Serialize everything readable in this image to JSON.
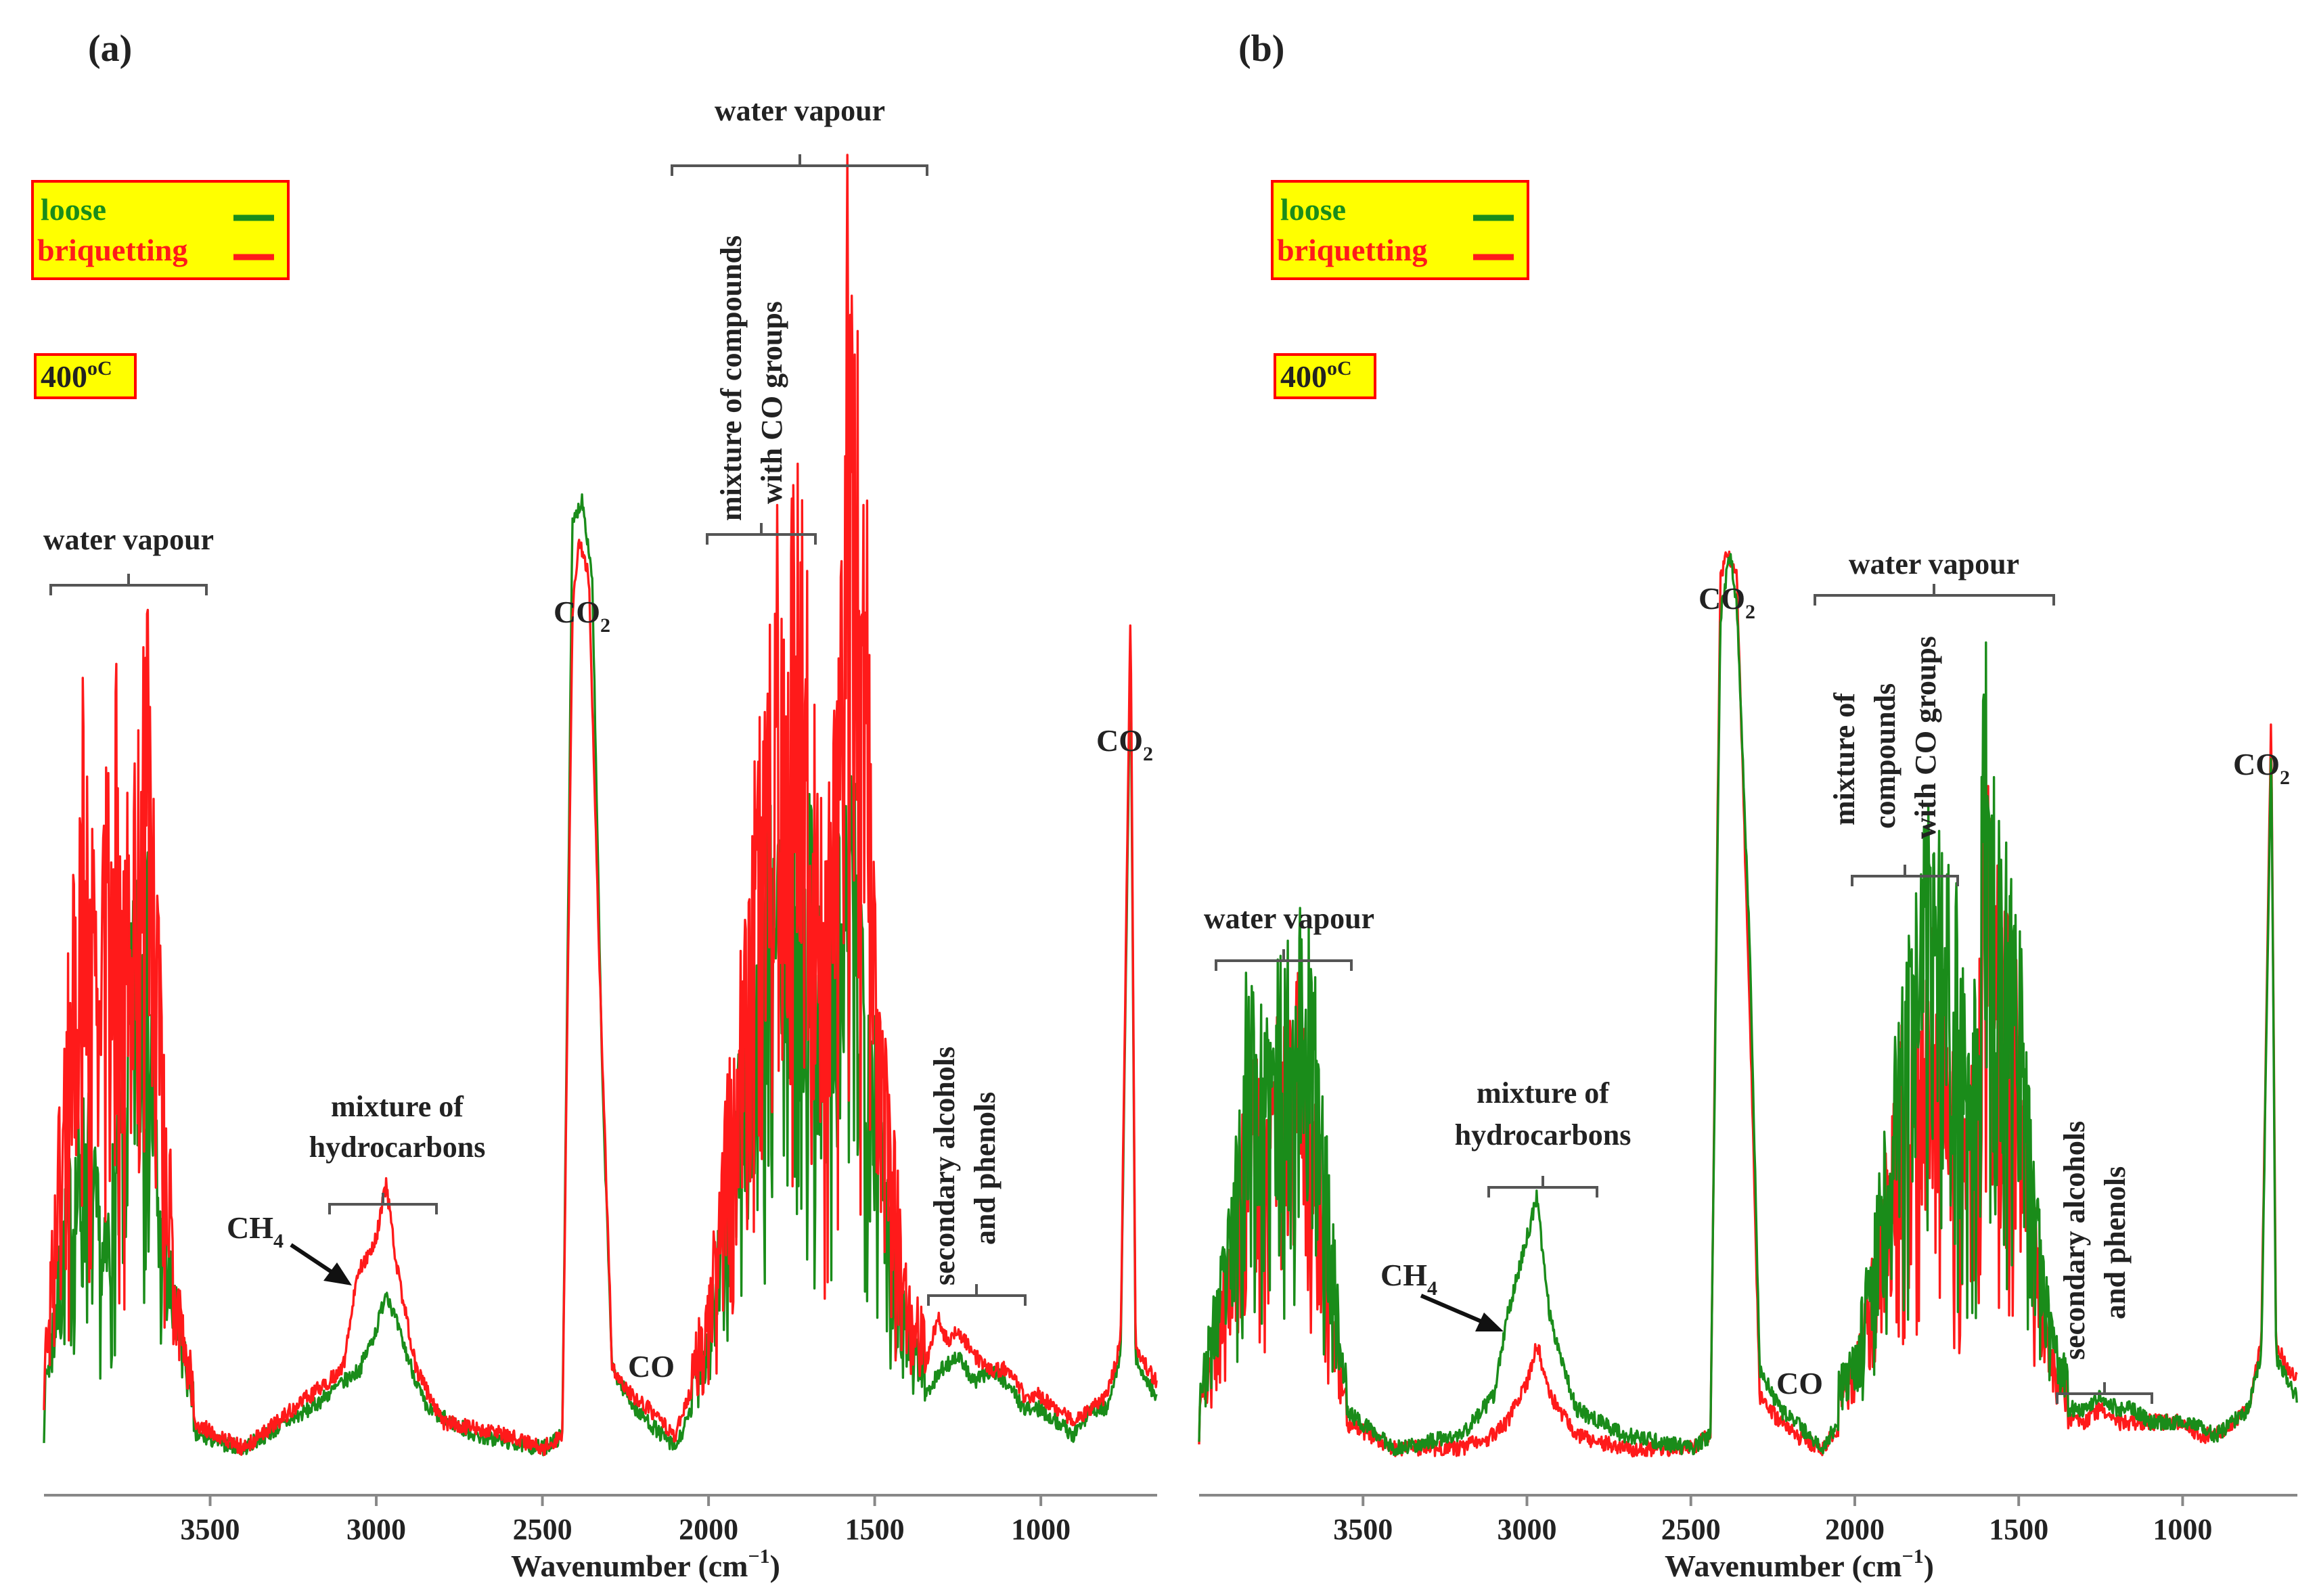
{
  "figure": {
    "panels": [
      {
        "panel_label": "(a)",
        "legend": {
          "loose": "loose",
          "briquetting": "briquetting"
        },
        "temperature": "400",
        "temperature_unit": "oC",
        "xlabel": "Wavenumber (cm",
        "xlabel_sup": "−1",
        "xlabel_close": ")",
        "ticks": [
          "3500",
          "3000",
          "2500",
          "2000",
          "1500",
          "1000"
        ],
        "annotations": {
          "water_left": "water vapour",
          "water_top": "water vapour",
          "co_groups_1": "mixture of compounds",
          "co_groups_2": "with CO groups",
          "hc_1": "mixture of",
          "hc_2": "hydrocarbons",
          "ch4": "CH",
          "ch4_sub": "4",
          "co2_left": "CO",
          "co2_left_sub": "2",
          "co": "CO",
          "alc_1": "secondary alcohols",
          "alc_2": "and phenols",
          "co2_right": "CO",
          "co2_right_sub": "2"
        }
      },
      {
        "panel_label": "(b)",
        "legend": {
          "loose": "loose",
          "briquetting": "briquetting"
        },
        "temperature": "400",
        "temperature_unit": "oC",
        "xlabel": "Wavenumber (cm",
        "xlabel_sup": "−1",
        "xlabel_close": ")",
        "ticks": [
          "3500",
          "3000",
          "2500",
          "2000",
          "1500",
          "1000"
        ],
        "annotations": {
          "water_left": "water vapour",
          "water_top": "water vapour",
          "co_groups_1": "mixture of",
          "co_groups_2": "compounds",
          "co_groups_3": "with CO groups",
          "hc_1": "mixture of",
          "hc_2": "hydrocarbons",
          "ch4": "CH",
          "ch4_sub": "4",
          "co2_left": "CO",
          "co2_left_sub": "2",
          "co": "CO",
          "alc_1": "secondary alcohols",
          "alc_2": "and phenols",
          "co2_right": "CO",
          "co2_right_sub": "2"
        }
      }
    ]
  },
  "colors": {
    "loose": "#1a8c1a",
    "briquetting": "#ff1a1a",
    "legend_bg": "#ffff00",
    "legend_border": "#ff0000"
  },
  "chart_data": [
    {
      "type": "line",
      "title": "(a)",
      "xlabel": "Wavenumber (cm−1)",
      "ylabel": "",
      "xlim": [
        4000,
        650
      ],
      "ylim": [
        0,
        1
      ],
      "xticks": [
        3500,
        3000,
        2500,
        2000,
        1500,
        1000
      ],
      "series": [
        {
          "name": "loose",
          "points": [
            [
              4000,
              0.03
            ],
            [
              3930,
              0.2
            ],
            [
              3870,
              0.27
            ],
            [
              3820,
              0.15
            ],
            [
              3760,
              0.3
            ],
            [
              3700,
              0.52
            ],
            [
              3650,
              0.18
            ],
            [
              3600,
              0.1
            ],
            [
              3550,
              0.03
            ],
            [
              3400,
              0.02
            ],
            [
              3200,
              0.05
            ],
            [
              3100,
              0.07
            ],
            [
              3050,
              0.08
            ],
            [
              3000,
              0.11
            ],
            [
              2970,
              0.14
            ],
            [
              2920,
              0.1
            ],
            [
              2850,
              0.05
            ],
            [
              2700,
              0.03
            ],
            [
              2500,
              0.02
            ],
            [
              2440,
              0.03
            ],
            [
              2410,
              0.72
            ],
            [
              2380,
              0.74
            ],
            [
              2350,
              0.68
            ],
            [
              2320,
              0.3
            ],
            [
              2290,
              0.08
            ],
            [
              2220,
              0.05
            ],
            [
              2180,
              0.04
            ],
            [
              2100,
              0.02
            ],
            [
              2000,
              0.08
            ],
            [
              1950,
              0.2
            ],
            [
              1900,
              0.32
            ],
            [
              1850,
              0.42
            ],
            [
              1800,
              0.5
            ],
            [
              1750,
              0.55
            ],
            [
              1700,
              0.52
            ],
            [
              1650,
              0.4
            ],
            [
              1600,
              0.48
            ],
            [
              1570,
              0.5
            ],
            [
              1530,
              0.45
            ],
            [
              1500,
              0.35
            ],
            [
              1450,
              0.18
            ],
            [
              1400,
              0.09
            ],
            [
              1350,
              0.06
            ],
            [
              1300,
              0.08
            ],
            [
              1250,
              0.09
            ],
            [
              1200,
              0.07
            ],
            [
              1150,
              0.08
            ],
            [
              1100,
              0.07
            ],
            [
              1050,
              0.05
            ],
            [
              1000,
              0.05
            ],
            [
              950,
              0.04
            ],
            [
              900,
              0.03
            ],
            [
              850,
              0.05
            ],
            [
              800,
              0.05
            ],
            [
              760,
              0.09
            ],
            [
              730,
              0.63
            ],
            [
              715,
              0.09
            ],
            [
              680,
              0.07
            ],
            [
              650,
              0.06
            ]
          ]
        },
        {
          "name": "briquetting",
          "points": [
            [
              4000,
              0.05
            ],
            [
              3930,
              0.35
            ],
            [
              3880,
              0.58
            ],
            [
              3840,
              0.4
            ],
            [
              3790,
              0.6
            ],
            [
              3740,
              0.45
            ],
            [
              3690,
              0.67
            ],
            [
              3640,
              0.3
            ],
            [
              3600,
              0.12
            ],
            [
              3550,
              0.04
            ],
            [
              3400,
              0.02
            ],
            [
              3200,
              0.06
            ],
            [
              3100,
              0.08
            ],
            [
              3060,
              0.15
            ],
            [
              3000,
              0.18
            ],
            [
              2970,
              0.22
            ],
            [
              2940,
              0.16
            ],
            [
              2880,
              0.08
            ],
            [
              2800,
              0.04
            ],
            [
              2600,
              0.03
            ],
            [
              2500,
              0.02
            ],
            [
              2440,
              0.03
            ],
            [
              2410,
              0.65
            ],
            [
              2390,
              0.71
            ],
            [
              2360,
              0.68
            ],
            [
              2330,
              0.4
            ],
            [
              2290,
              0.08
            ],
            [
              2230,
              0.06
            ],
            [
              2180,
              0.05
            ],
            [
              2100,
              0.03
            ],
            [
              2000,
              0.1
            ],
            [
              1950,
              0.25
            ],
            [
              1900,
              0.4
            ],
            [
              1850,
              0.55
            ],
            [
              1800,
              0.7
            ],
            [
              1760,
              0.72
            ],
            [
              1720,
              0.78
            ],
            [
              1700,
              0.73
            ],
            [
              1650,
              0.45
            ],
            [
              1600,
              0.65
            ],
            [
              1580,
              1.0
            ],
            [
              1560,
              0.85
            ],
            [
              1530,
              0.82
            ],
            [
              1500,
              0.4
            ],
            [
              1450,
              0.25
            ],
            [
              1400,
              0.12
            ],
            [
              1350,
              0.08
            ],
            [
              1310,
              0.12
            ],
            [
              1280,
              0.1
            ],
            [
              1250,
              0.11
            ],
            [
              1200,
              0.09
            ],
            [
              1150,
              0.08
            ],
            [
              1100,
              0.08
            ],
            [
              1050,
              0.06
            ],
            [
              1000,
              0.06
            ],
            [
              950,
              0.05
            ],
            [
              900,
              0.04
            ],
            [
              850,
              0.05
            ],
            [
              800,
              0.06
            ],
            [
              760,
              0.1
            ],
            [
              730,
              0.66
            ],
            [
              715,
              0.1
            ],
            [
              680,
              0.08
            ],
            [
              650,
              0.07
            ]
          ]
        }
      ]
    },
    {
      "type": "line",
      "title": "(b)",
      "xlabel": "Wavenumber (cm−1)",
      "ylabel": "",
      "xlim": [
        4000,
        650
      ],
      "ylim": [
        0,
        1
      ],
      "xticks": [
        3500,
        3000,
        2500,
        2000,
        1500,
        1000
      ],
      "series": [
        {
          "name": "loose",
          "points": [
            [
              4000,
              0.03
            ],
            [
              3900,
              0.18
            ],
            [
              3850,
              0.38
            ],
            [
              3800,
              0.3
            ],
            [
              3750,
              0.37
            ],
            [
              3700,
              0.4
            ],
            [
              3670,
              0.43
            ],
            [
              3630,
              0.28
            ],
            [
              3600,
              0.19
            ],
            [
              3560,
              0.05
            ],
            [
              3400,
              0.02
            ],
            [
              3200,
              0.03
            ],
            [
              3100,
              0.06
            ],
            [
              3060,
              0.12
            ],
            [
              3000,
              0.18
            ],
            [
              2970,
              0.21
            ],
            [
              2930,
              0.12
            ],
            [
              2850,
              0.05
            ],
            [
              2700,
              0.03
            ],
            [
              2500,
              0.02
            ],
            [
              2440,
              0.03
            ],
            [
              2410,
              0.65
            ],
            [
              2380,
              0.7
            ],
            [
              2360,
              0.66
            ],
            [
              2320,
              0.4
            ],
            [
              2290,
              0.08
            ],
            [
              2230,
              0.05
            ],
            [
              2180,
              0.04
            ],
            [
              2100,
              0.02
            ],
            [
              2000,
              0.06
            ],
            [
              1950,
              0.15
            ],
            [
              1900,
              0.25
            ],
            [
              1850,
              0.35
            ],
            [
              1800,
              0.45
            ],
            [
              1760,
              0.48
            ],
            [
              1720,
              0.42
            ],
            [
              1700,
              0.44
            ],
            [
              1650,
              0.3
            ],
            [
              1600,
              0.6
            ],
            [
              1580,
              0.52
            ],
            [
              1550,
              0.48
            ],
            [
              1500,
              0.4
            ],
            [
              1450,
              0.2
            ],
            [
              1400,
              0.08
            ],
            [
              1350,
              0.05
            ],
            [
              1300,
              0.05
            ],
            [
              1250,
              0.06
            ],
            [
              1200,
              0.05
            ],
            [
              1150,
              0.05
            ],
            [
              1100,
              0.04
            ],
            [
              1050,
              0.04
            ],
            [
              1000,
              0.04
            ],
            [
              950,
              0.04
            ],
            [
              900,
              0.03
            ],
            [
              850,
              0.04
            ],
            [
              800,
              0.05
            ],
            [
              760,
              0.09
            ],
            [
              730,
              0.56
            ],
            [
              715,
              0.09
            ],
            [
              680,
              0.07
            ],
            [
              650,
              0.06
            ]
          ]
        },
        {
          "name": "briquetting",
          "points": [
            [
              4000,
              0.02
            ],
            [
              3900,
              0.15
            ],
            [
              3850,
              0.32
            ],
            [
              3800,
              0.25
            ],
            [
              3750,
              0.33
            ],
            [
              3700,
              0.35
            ],
            [
              3670,
              0.3
            ],
            [
              3630,
              0.22
            ],
            [
              3600,
              0.12
            ],
            [
              3560,
              0.04
            ],
            [
              3400,
              0.02
            ],
            [
              3200,
              0.02
            ],
            [
              3100,
              0.03
            ],
            [
              3060,
              0.04
            ],
            [
              3000,
              0.07
            ],
            [
              2970,
              0.1
            ],
            [
              2930,
              0.06
            ],
            [
              2850,
              0.03
            ],
            [
              2700,
              0.02
            ],
            [
              2500,
              0.02
            ],
            [
              2440,
              0.03
            ],
            [
              2410,
              0.68
            ],
            [
              2390,
              0.7
            ],
            [
              2360,
              0.68
            ],
            [
              2320,
              0.35
            ],
            [
              2290,
              0.06
            ],
            [
              2230,
              0.04
            ],
            [
              2180,
              0.03
            ],
            [
              2100,
              0.02
            ],
            [
              2000,
              0.05
            ],
            [
              1950,
              0.12
            ],
            [
              1900,
              0.22
            ],
            [
              1850,
              0.32
            ],
            [
              1800,
              0.35
            ],
            [
              1760,
              0.38
            ],
            [
              1720,
              0.33
            ],
            [
              1700,
              0.3
            ],
            [
              1650,
              0.25
            ],
            [
              1600,
              0.5
            ],
            [
              1580,
              0.45
            ],
            [
              1550,
              0.4
            ],
            [
              1500,
              0.35
            ],
            [
              1450,
              0.18
            ],
            [
              1400,
              0.06
            ],
            [
              1350,
              0.04
            ],
            [
              1300,
              0.04
            ],
            [
              1250,
              0.05
            ],
            [
              1200,
              0.04
            ],
            [
              1150,
              0.04
            ],
            [
              1100,
              0.04
            ],
            [
              1050,
              0.04
            ],
            [
              1000,
              0.04
            ],
            [
              950,
              0.03
            ],
            [
              900,
              0.03
            ],
            [
              850,
              0.04
            ],
            [
              800,
              0.05
            ],
            [
              760,
              0.1
            ],
            [
              730,
              0.58
            ],
            [
              715,
              0.1
            ],
            [
              680,
              0.08
            ],
            [
              650,
              0.07
            ]
          ]
        }
      ]
    }
  ]
}
